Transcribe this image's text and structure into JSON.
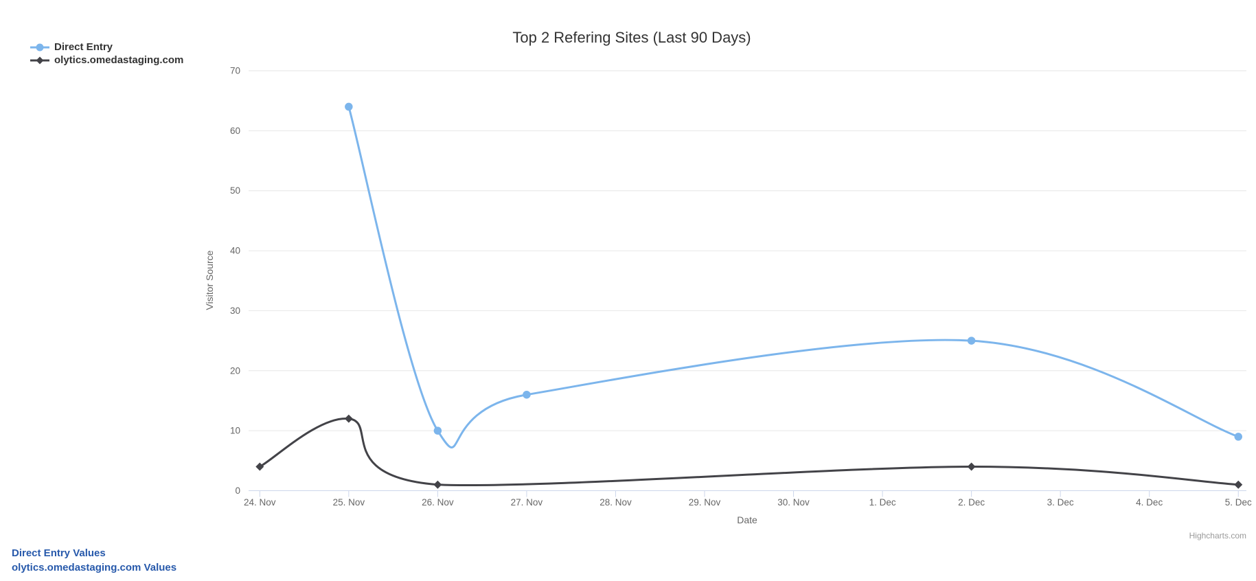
{
  "chart": {
    "credit": "Highcharts.com"
  },
  "chart_data": {
    "type": "line",
    "spline": true,
    "title": "Top 2 Refering Sites (Last 90 Days)",
    "xlabel": "Date",
    "ylabel": "Visitor Source",
    "x_categories": [
      "24. Nov",
      "25. Nov",
      "26. Nov",
      "27. Nov",
      "28. Nov",
      "29. Nov",
      "30. Nov",
      "1. Dec",
      "2. Dec",
      "3. Dec",
      "4. Dec",
      "5. Dec"
    ],
    "ylim": [
      0,
      70
    ],
    "y_ticks": [
      0,
      10,
      20,
      30,
      40,
      50,
      60,
      70
    ],
    "grid": "horizontal",
    "legend_position": "top-left",
    "series": [
      {
        "name": "Direct Entry",
        "color": "#7cb5ec",
        "marker": "circle",
        "points": [
          [
            1,
            64
          ],
          [
            2,
            10
          ],
          [
            3,
            16
          ],
          [
            8,
            25
          ],
          [
            11,
            9
          ]
        ]
      },
      {
        "name": "olytics.omedastaging.com",
        "color": "#434348",
        "marker": "diamond",
        "points": [
          [
            0,
            4
          ],
          [
            1,
            12
          ],
          [
            2,
            1
          ],
          [
            8,
            4
          ],
          [
            11,
            1
          ]
        ]
      }
    ]
  },
  "footer_links": [
    {
      "label": "Direct Entry Values"
    },
    {
      "label": "olytics.omedastaging.com Values"
    }
  ],
  "colors": {
    "series_blue": "#7cb5ec",
    "series_dark": "#434348",
    "gridline": "#e6e6e6",
    "axis_line": "#ccd6eb",
    "axis_label": "#666666",
    "axis_title": "#666666",
    "title_text": "#333333",
    "legend_text": "#333333",
    "link_blue": "#2759ab",
    "credit_gray": "#999999"
  }
}
